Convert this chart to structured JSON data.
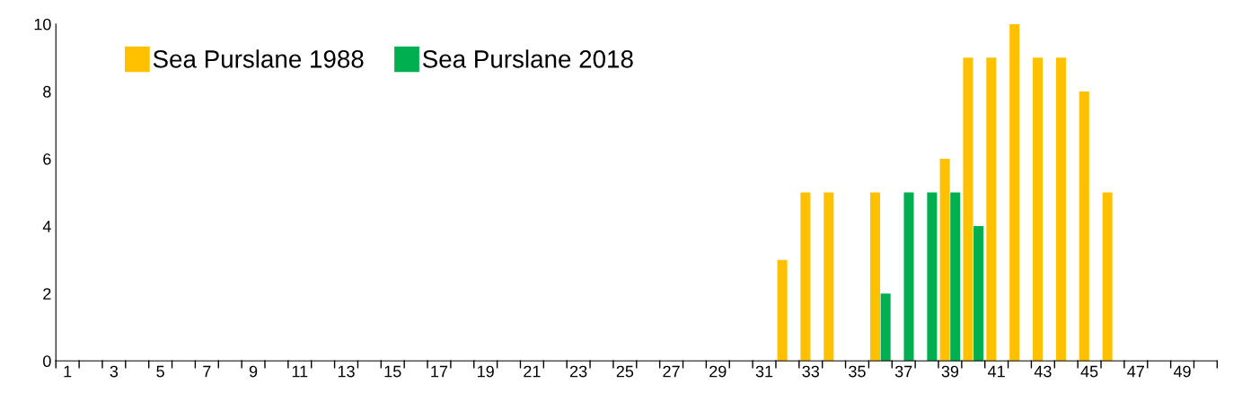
{
  "chart_data": {
    "type": "bar",
    "categories": [
      "1",
      null,
      "3",
      null,
      "5",
      null,
      "7",
      null,
      "9",
      null,
      "11",
      null,
      "13",
      null,
      "15",
      null,
      "17",
      null,
      "19",
      null,
      "21",
      null,
      "23",
      null,
      "25",
      null,
      "27",
      null,
      "29",
      null,
      "31",
      null,
      "33",
      null,
      "35",
      null,
      "37",
      null,
      "39",
      null,
      "41",
      null,
      "43",
      null,
      "45",
      null,
      "47",
      null,
      "49",
      null
    ],
    "series": [
      {
        "name": "Sea Purslane 1988",
        "color": "#ffc000",
        "values": [
          0,
          0,
          0,
          0,
          0,
          0,
          0,
          0,
          0,
          0,
          0,
          0,
          0,
          0,
          0,
          0,
          0,
          0,
          0,
          0,
          0,
          0,
          0,
          0,
          0,
          0,
          0,
          0,
          0,
          0,
          0,
          3,
          5,
          5,
          0,
          5,
          0,
          0,
          6,
          9,
          9,
          10,
          9,
          9,
          8,
          5,
          0,
          0,
          0,
          0
        ]
      },
      {
        "name": "Sea Purslane 2018",
        "color": "#00b050",
        "values": [
          0,
          0,
          0,
          0,
          0,
          0,
          0,
          0,
          0,
          0,
          0,
          0,
          0,
          0,
          0,
          0,
          0,
          0,
          0,
          0,
          0,
          0,
          0,
          0,
          0,
          0,
          0,
          0,
          0,
          0,
          0,
          0,
          0,
          0,
          0,
          2,
          5,
          5,
          5,
          4,
          0,
          0,
          0,
          0,
          0,
          0,
          0,
          0,
          0,
          0
        ]
      }
    ],
    "ylim": [
      0,
      10
    ],
    "yticks": [
      0,
      2,
      4,
      6,
      8,
      10
    ],
    "grid": false,
    "legend": "top left"
  }
}
